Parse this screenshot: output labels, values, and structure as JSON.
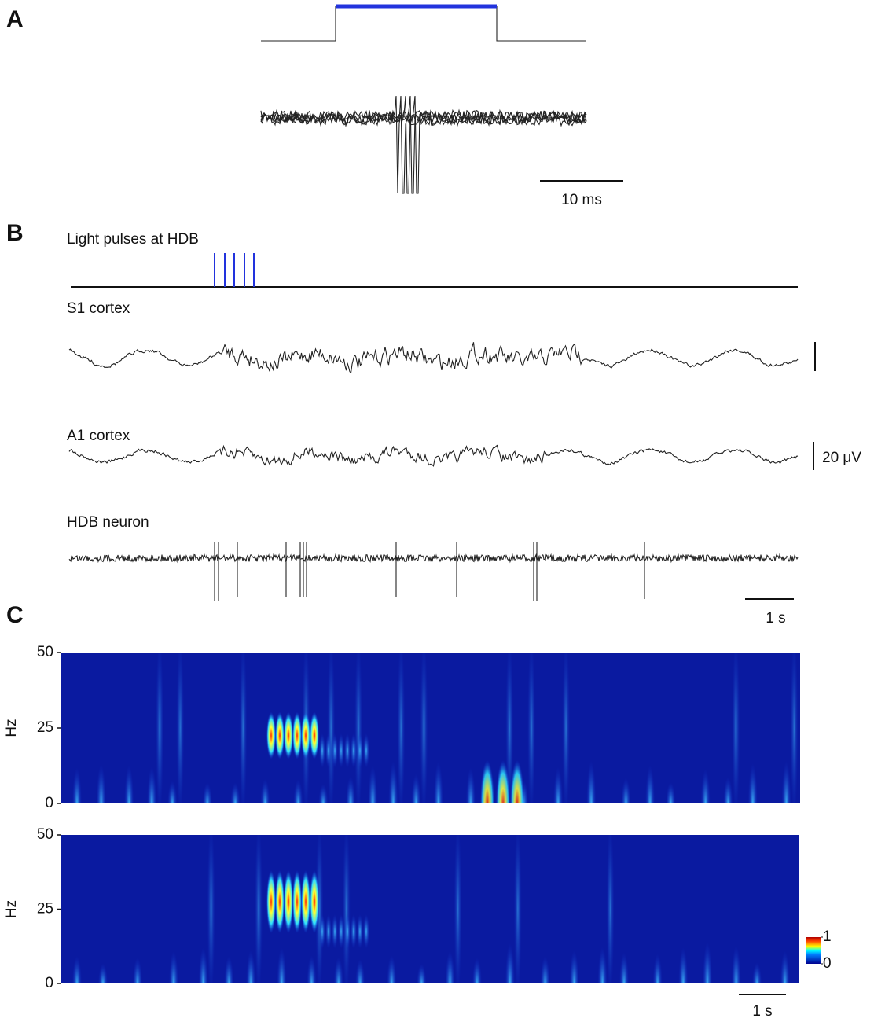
{
  "panels": [
    {
      "label": "A",
      "scale_bar": "10 ms"
    },
    {
      "label": "B",
      "traces": [
        "Light pulses at HDB",
        "S1 cortex",
        "A1 cortex",
        "HDB neuron"
      ],
      "scale_bars": [
        "20 μV",
        "1 s"
      ]
    },
    {
      "label": "C",
      "plots": [
        {
          "ylabel": "Hz",
          "ylim": [
            0,
            50
          ],
          "yticks": [
            0,
            25,
            50
          ]
        },
        {
          "ylabel": "Hz",
          "ylim": [
            0,
            50
          ],
          "yticks": [
            0,
            25,
            50
          ]
        }
      ],
      "colorbar": {
        "ticks": [
          0,
          1
        ]
      },
      "scale_bar": "1 s"
    }
  ]
}
